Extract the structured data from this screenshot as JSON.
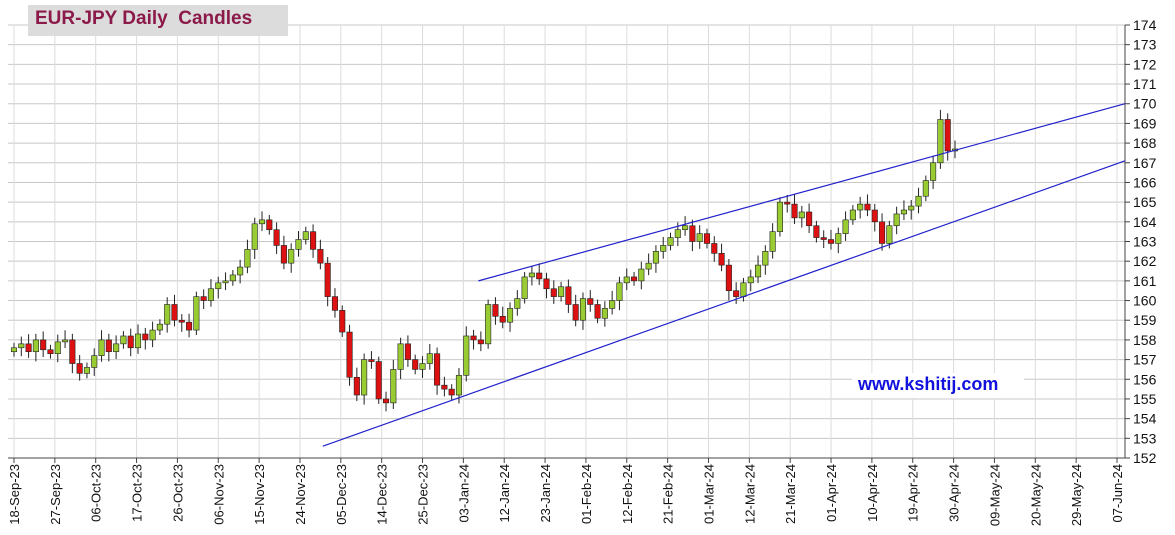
{
  "chart_data": {
    "type": "candlestick",
    "title": "EUR-JPY Daily  Candles",
    "ylim": [
      152,
      174
    ],
    "y_ticks": [
      152,
      153,
      154,
      155,
      156,
      157,
      158,
      159,
      160,
      161,
      162,
      163,
      164,
      165,
      166,
      167,
      168,
      169,
      170,
      171,
      172,
      173,
      174
    ],
    "x_ticks": [
      "18-Sep-23",
      "27-Sep-23",
      "06-Oct-23",
      "17-Oct-23",
      "26-Oct-23",
      "06-Nov-23",
      "15-Nov-23",
      "24-Nov-23",
      "05-Dec-23",
      "14-Dec-23",
      "25-Dec-23",
      "03-Jan-24",
      "12-Jan-24",
      "23-Jan-24",
      "01-Feb-24",
      "12-Feb-24",
      "21-Feb-24",
      "01-Mar-24",
      "12-Mar-24",
      "21-Mar-24",
      "01-Apr-24",
      "10-Apr-24",
      "19-Apr-24",
      "30-Apr-24",
      "09-May-24",
      "20-May-24",
      "29-May-24",
      "07-Jun-24"
    ],
    "up_color": "#99cc33",
    "down_color": "#dd1111",
    "trendline_color": "#2222cc",
    "grid": true,
    "close_path": [
      157.6,
      157.8,
      157.4,
      158.0,
      157.5,
      157.3,
      157.9,
      158.0,
      156.8,
      156.3,
      156.6,
      157.2,
      158.0,
      157.4,
      157.8,
      158.2,
      157.6,
      158.3,
      158.0,
      158.5,
      158.8,
      159.8,
      159.0,
      158.9,
      158.5,
      160.2,
      160.0,
      160.6,
      160.9,
      161.0,
      161.3,
      161.7,
      162.6,
      163.9,
      164.1,
      163.6,
      162.8,
      161.9,
      162.6,
      163.1,
      163.5,
      162.6,
      161.9,
      160.2,
      159.5,
      158.4,
      156.1,
      155.2,
      157.0,
      156.9,
      155.0,
      154.8,
      156.5,
      157.8,
      157.0,
      156.5,
      156.8,
      157.3,
      155.7,
      155.5,
      155.2,
      156.2,
      158.2,
      158.0,
      157.8,
      159.8,
      159.2,
      158.9,
      159.6,
      160.1,
      161.2,
      161.4,
      161.1,
      160.6,
      160.2,
      160.7,
      159.8,
      159.0,
      160.1,
      159.8,
      159.1,
      159.6,
      160.0,
      160.9,
      161.2,
      161.0,
      161.6,
      161.9,
      162.5,
      162.8,
      163.2,
      163.6,
      163.8,
      163.0,
      163.4,
      162.9,
      162.4,
      161.8,
      160.5,
      160.2,
      160.9,
      161.2,
      161.8,
      162.5,
      163.5,
      165.0,
      164.9,
      164.2,
      164.5,
      163.8,
      163.2,
      163.1,
      162.9,
      163.4,
      164.1,
      164.6,
      164.9,
      164.6,
      164.0,
      162.9,
      163.8,
      164.4,
      164.6,
      164.8,
      165.3,
      166.1,
      167.0,
      169.2,
      167.6,
      167.7
    ],
    "trendlines": [
      {
        "from": {
          "x": "05-Dec-23",
          "y": 152.6
        },
        "to": {
          "x": "07-Jun-24",
          "y": 167.1
        }
      },
      {
        "from": {
          "x": "03-Jan-24",
          "y": 161.0
        },
        "to": {
          "x": "07-Jun-24",
          "y": 170.0
        }
      }
    ]
  },
  "watermark": "www.kshitij.com"
}
